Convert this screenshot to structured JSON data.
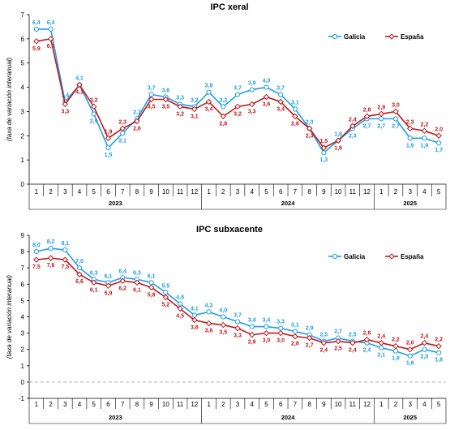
{
  "chart_data": [
    {
      "type": "line",
      "title": "IPC xeral",
      "ylabel": "(taxa de variación interanual)",
      "ylim": [
        0,
        7
      ],
      "yticks": [
        0,
        1,
        2,
        3,
        4,
        5,
        6,
        7
      ],
      "x_tick_labels": [
        "1",
        "2",
        "3",
        "4",
        "5",
        "6",
        "7",
        "8",
        "9",
        "10",
        "11",
        "12",
        "1",
        "2",
        "3",
        "4",
        "5",
        "6",
        "7",
        "8",
        "9",
        "10",
        "11",
        "12",
        "1",
        "2",
        "3",
        "4",
        "5"
      ],
      "year_groups": [
        {
          "label": "2023",
          "count": 12
        },
        {
          "label": "2024",
          "count": 12
        },
        {
          "label": "2025",
          "count": 5
        }
      ],
      "legend_position": "top-right",
      "series": [
        {
          "name": "Galicia",
          "color": "#1e9fe6",
          "values": [
            6.4,
            6.4,
            3.4,
            4.1,
            2.9,
            1.5,
            2.1,
            2.7,
            3.7,
            3.6,
            3.3,
            3.2,
            3.8,
            3.2,
            3.7,
            3.9,
            4.0,
            3.7,
            3.1,
            2.3,
            1.3,
            1.8,
            2.3,
            2.7,
            2.7,
            2.7,
            1.9,
            1.9,
            1.7
          ],
          "labels": [
            "6,4",
            "6,4",
            "3,4",
            "4,1",
            "2,9",
            "1,5",
            "2,1",
            "2,7",
            "3,7",
            "3,6",
            "3,3",
            "3,2",
            "3,8",
            "3,2",
            "3,7",
            "3,9",
            "4,0",
            "3,7",
            "3,1",
            "2,3",
            "1,3",
            "1,8",
            "2,3",
            "2,7",
            "2,7",
            "2,7",
            "1,9",
            "1,9",
            "1,7"
          ]
        },
        {
          "name": "España",
          "color": "#c0191c",
          "values": [
            5.9,
            6.0,
            3.3,
            4.1,
            3.2,
            1.9,
            2.3,
            2.6,
            3.5,
            3.5,
            3.2,
            3.1,
            3.4,
            2.8,
            3.2,
            3.3,
            3.6,
            3.4,
            2.8,
            2.3,
            1.5,
            1.8,
            2.4,
            2.8,
            2.9,
            3.0,
            2.3,
            2.2,
            2.0
          ],
          "labels": [
            "5,9",
            "6,0",
            "3,3",
            "4,1",
            "3,2",
            "1,9",
            "2,3",
            "2,6",
            "3,5",
            "3,5",
            "3,2",
            "3,1",
            "3,4",
            "2,8",
            "3,2",
            "3,3",
            "3,6",
            "3,4",
            "2,8",
            "2,3",
            "1,5",
            "1,8",
            "2,4",
            "2,8",
            "2,9",
            "3,0",
            "2,3",
            "2,2",
            "2,0"
          ]
        }
      ]
    },
    {
      "type": "line",
      "title": "IPC subxacente",
      "ylabel": "(taxa de variación interanual)",
      "ylim": [
        -1,
        9
      ],
      "yticks": [
        -1,
        0,
        1,
        2,
        3,
        4,
        5,
        6,
        7,
        8,
        9
      ],
      "x_tick_labels": [
        "1",
        "2",
        "3",
        "4",
        "5",
        "6",
        "7",
        "8",
        "9",
        "10",
        "11",
        "12",
        "1",
        "2",
        "3",
        "4",
        "5",
        "6",
        "7",
        "8",
        "9",
        "10",
        "11",
        "12",
        "1",
        "2",
        "3",
        "4",
        "5"
      ],
      "year_groups": [
        {
          "label": "2023",
          "count": 12
        },
        {
          "label": "2024",
          "count": 12
        },
        {
          "label": "2025",
          "count": 5
        }
      ],
      "legend_position": "top-right",
      "zero_line": "dashed",
      "series": [
        {
          "name": "Galicia",
          "color": "#1e9fe6",
          "values": [
            8.0,
            8.2,
            8.1,
            7.0,
            6.3,
            6.1,
            6.4,
            6.3,
            6.1,
            5.5,
            4.8,
            4.1,
            4.3,
            4.0,
            3.7,
            3.4,
            3.4,
            3.3,
            3.1,
            2.9,
            2.5,
            2.7,
            2.5,
            2.4,
            2.1,
            1.9,
            1.6,
            2.0,
            1.8
          ],
          "labels": [
            "8,0",
            "8,2",
            "8,1",
            "7,0",
            "6,3",
            "6,1",
            "6,4",
            "6,3",
            "6,1",
            "5,5",
            "4,8",
            "4,1",
            "4,3",
            "4,0",
            "3,7",
            "3,4",
            "3,4",
            "3,3",
            "3,1",
            "2,9",
            "2,5",
            "2,7",
            "2,5",
            "2,4",
            "2,1",
            "1,9",
            "1,6",
            "2,0",
            "1,8"
          ]
        },
        {
          "name": "España",
          "color": "#c0191c",
          "values": [
            7.5,
            7.6,
            7.5,
            6.6,
            6.1,
            5.9,
            6.2,
            6.1,
            5.8,
            5.2,
            4.5,
            3.8,
            3.6,
            3.5,
            3.3,
            2.9,
            3.0,
            3.0,
            2.8,
            2.7,
            2.4,
            2.5,
            2.4,
            2.6,
            2.4,
            2.2,
            2.0,
            2.4,
            2.2
          ],
          "labels": [
            "7,5",
            "7,6",
            "7,5",
            "6,6",
            "6,1",
            "5,9",
            "6,2",
            "6,1",
            "5,8",
            "5,2",
            "4,5",
            "3,8",
            "3,6",
            "3,5",
            "3,3",
            "2,9",
            "3,0",
            "3,0",
            "2,8",
            "2,7",
            "2,4",
            "2,5",
            "2,4",
            "2,6",
            "2,4",
            "2,2",
            "2,0",
            "2,4",
            "2,2"
          ]
        }
      ]
    }
  ]
}
